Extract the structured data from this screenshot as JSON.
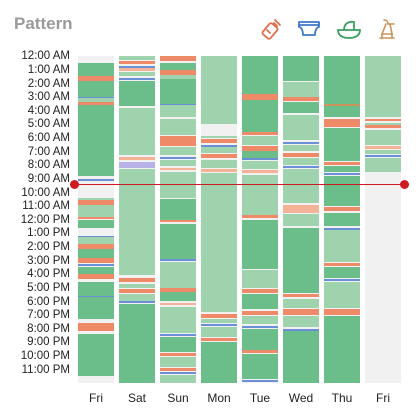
{
  "header": {
    "title": "Pattern",
    "icons": [
      "bottle-icon",
      "diaper-icon",
      "bassinet-icon",
      "pump-icon"
    ],
    "icon_color": "#e0704c"
  },
  "chart": {
    "hours": [
      "12:00 AM",
      "1:00 AM",
      "2:00 AM",
      "3:00 AM",
      "4:00 AM",
      "5:00 AM",
      "6:00 AM",
      "7:00 AM",
      "8:00 AM",
      "9:00 AM",
      "10:00 AM",
      "11:00 AM",
      "12:00 PM",
      "1:00 PM",
      "2:00 PM",
      "3:00 PM",
      "4:00 PM",
      "5:00 PM",
      "6:00 PM",
      "7:00 PM",
      "8:00 PM",
      "9:00 PM",
      "10:00 PM",
      "11:00 PM"
    ],
    "days": [
      "Fri",
      "Sat",
      "Sun",
      "Mon",
      "Tue",
      "Wed",
      "Thu",
      "Fri"
    ],
    "colors": {
      "sleep_dark": "#6bbd8a",
      "sleep_light": "#9fd3ae",
      "feed": "#ef8a68",
      "feed_light": "#f4b396",
      "diaper": "#6a8fd6",
      "diaper_light": "#b7b3e8",
      "pump": "#c9935a",
      "now_line": "#d01a22"
    },
    "now_time": "9:00 AM"
  },
  "chart_data": {
    "type": "heatmap",
    "x": [
      "Fri",
      "Sat",
      "Sun",
      "Mon",
      "Tue",
      "Wed",
      "Thu",
      "Fri"
    ],
    "y_hours": [
      "12:00 AM",
      "1:00 AM",
      "2:00 AM",
      "3:00 AM",
      "4:00 AM",
      "5:00 AM",
      "6:00 AM",
      "7:00 AM",
      "8:00 AM",
      "9:00 AM",
      "10:00 AM",
      "11:00 AM",
      "12:00 PM",
      "1:00 PM",
      "2:00 PM",
      "3:00 PM",
      "4:00 PM",
      "5:00 PM",
      "6:00 PM",
      "7:00 PM",
      "8:00 PM",
      "9:00 PM",
      "10:00 PM",
      "11:00 PM"
    ],
    "columns": [
      {
        "day": "Fri",
        "segments": [
          [
            "sleep_dark",
            0.5,
            1.5
          ],
          [
            "feed",
            1.5,
            1.8
          ],
          [
            "sleep_dark",
            1.8,
            3.0
          ],
          [
            "diaper",
            3.0,
            3.1
          ],
          [
            "sleep_light",
            3.1,
            3.4
          ],
          [
            "feed",
            3.4,
            3.6
          ],
          [
            "sleep_dark",
            3.6,
            8.8
          ],
          [
            "diaper",
            9.0,
            9.2
          ],
          [
            "sleep_light",
            10.4,
            10.6
          ],
          [
            "feed",
            10.6,
            10.9
          ],
          [
            "sleep_light",
            10.9,
            11.8
          ],
          [
            "feed",
            11.8,
            12.0
          ],
          [
            "sleep_dark",
            12.0,
            12.6
          ],
          [
            "diaper",
            13.2,
            13.3
          ],
          [
            "sleep_light",
            13.3,
            13.8
          ],
          [
            "feed",
            13.8,
            14.2
          ],
          [
            "sleep_dark",
            14.2,
            14.8
          ],
          [
            "feed",
            14.8,
            15.2
          ],
          [
            "diaper",
            15.3,
            15.4
          ],
          [
            "sleep_dark",
            15.5,
            16.0
          ],
          [
            "feed",
            16.0,
            16.4
          ],
          [
            "sleep_dark",
            16.6,
            17.6
          ],
          [
            "diaper",
            17.6,
            17.7
          ],
          [
            "sleep_dark",
            17.7,
            19.3
          ],
          [
            "feed",
            19.6,
            20.2
          ],
          [
            "sleep_dark",
            20.4,
            23.5
          ]
        ]
      },
      {
        "day": "Sat",
        "segments": [
          [
            "sleep_light",
            0.0,
            0.3
          ],
          [
            "feed",
            0.4,
            0.6
          ],
          [
            "diaper",
            0.7,
            0.8
          ],
          [
            "feed_light",
            0.9,
            1.1
          ],
          [
            "sleep_light",
            1.2,
            1.5
          ],
          [
            "diaper",
            1.6,
            1.7
          ],
          [
            "sleep_dark",
            1.8,
            3.7
          ],
          [
            "sleep_light",
            3.8,
            7.3
          ],
          [
            "feed_light",
            7.4,
            7.6
          ],
          [
            "diaper_light",
            7.8,
            8.2
          ],
          [
            "sleep_light",
            8.3,
            16.1
          ],
          [
            "feed",
            16.3,
            16.6
          ],
          [
            "sleep_light",
            16.7,
            17.0
          ],
          [
            "feed",
            17.1,
            17.4
          ],
          [
            "sleep_light",
            17.5,
            18.0
          ],
          [
            "diaper",
            18.0,
            18.1
          ],
          [
            "sleep_dark",
            18.2,
            24.0
          ]
        ]
      },
      {
        "day": "Sun",
        "segments": [
          [
            "feed",
            0.0,
            0.4
          ],
          [
            "sleep_dark",
            0.5,
            1.0
          ],
          [
            "feed",
            1.0,
            1.4
          ],
          [
            "sleep_light",
            1.4,
            1.7
          ],
          [
            "sleep_dark",
            1.7,
            3.5
          ],
          [
            "diaper",
            3.5,
            3.6
          ],
          [
            "sleep_light",
            3.6,
            4.5
          ],
          [
            "sleep_light",
            4.6,
            5.8
          ],
          [
            "feed",
            5.9,
            6.6
          ],
          [
            "sleep_light",
            6.7,
            7.3
          ],
          [
            "diaper",
            7.4,
            7.5
          ],
          [
            "sleep_light",
            7.6,
            8.1
          ],
          [
            "feed_light",
            8.2,
            8.4
          ],
          [
            "sleep_light",
            8.5,
            10.4
          ],
          [
            "sleep_dark",
            10.5,
            12.0
          ],
          [
            "feed",
            12.0,
            12.2
          ],
          [
            "sleep_dark",
            12.3,
            14.9
          ],
          [
            "diaper",
            14.9,
            15.0
          ],
          [
            "sleep_light",
            15.1,
            17.0
          ],
          [
            "feed",
            17.0,
            17.3
          ],
          [
            "sleep_dark",
            17.3,
            18.0
          ],
          [
            "feed_light",
            18.1,
            18.3
          ],
          [
            "sleep_light",
            18.4,
            20.3
          ],
          [
            "diaper",
            20.4,
            20.5
          ],
          [
            "sleep_dark",
            20.6,
            21.7
          ],
          [
            "feed",
            21.8,
            22.0
          ],
          [
            "sleep_light",
            22.1,
            22.8
          ],
          [
            "feed",
            22.9,
            23.1
          ],
          [
            "diaper",
            23.2,
            23.3
          ],
          [
            "sleep_light",
            23.4,
            24.0
          ]
        ]
      },
      {
        "day": "Mon",
        "segments": [
          [
            "sleep_light",
            0.0,
            5.0
          ],
          [
            "sleep_light",
            5.9,
            6.0
          ],
          [
            "feed",
            6.1,
            6.4
          ],
          [
            "diaper",
            6.5,
            6.6
          ],
          [
            "sleep_light",
            6.7,
            7.1
          ],
          [
            "feed",
            7.2,
            7.5
          ],
          [
            "sleep_light",
            7.6,
            8.2
          ],
          [
            "feed_light",
            8.3,
            8.5
          ],
          [
            "sleep_light",
            8.6,
            18.8
          ],
          [
            "feed",
            18.9,
            19.2
          ],
          [
            "sleep_light",
            19.3,
            19.6
          ],
          [
            "diaper",
            19.7,
            19.8
          ],
          [
            "sleep_light",
            19.9,
            20.6
          ],
          [
            "feed",
            20.7,
            20.9
          ],
          [
            "sleep_dark",
            21.0,
            24.0
          ]
        ]
      },
      {
        "day": "Tue",
        "segments": [
          [
            "sleep_dark",
            0.0,
            2.8
          ],
          [
            "feed",
            2.8,
            3.2
          ],
          [
            "sleep_dark",
            3.2,
            5.6
          ],
          [
            "feed",
            5.6,
            5.8
          ],
          [
            "sleep_light",
            5.9,
            6.5
          ],
          [
            "feed",
            6.6,
            7.0
          ],
          [
            "sleep_dark",
            7.0,
            7.5
          ],
          [
            "diaper",
            7.5,
            7.6
          ],
          [
            "sleep_light",
            7.7,
            8.3
          ],
          [
            "feed_light",
            8.4,
            8.6
          ],
          [
            "sleep_light",
            8.7,
            11.7
          ],
          [
            "feed",
            11.7,
            11.9
          ],
          [
            "sleep_dark",
            12.0,
            15.6
          ],
          [
            "sleep_light",
            15.7,
            17.0
          ],
          [
            "feed",
            17.1,
            17.4
          ],
          [
            "sleep_dark",
            17.5,
            18.6
          ],
          [
            "feed",
            18.7,
            19.0
          ],
          [
            "sleep_light",
            19.1,
            19.7
          ],
          [
            "diaper",
            19.8,
            19.9
          ],
          [
            "sleep_dark",
            20.0,
            21.6
          ],
          [
            "feed",
            21.6,
            21.8
          ],
          [
            "sleep_dark",
            21.9,
            23.7
          ],
          [
            "diaper",
            23.8,
            23.9
          ]
        ]
      },
      {
        "day": "Wed",
        "segments": [
          [
            "sleep_dark",
            0.0,
            1.8
          ],
          [
            "sleep_light",
            1.9,
            3.0
          ],
          [
            "feed",
            3.0,
            3.3
          ],
          [
            "sleep_dark",
            3.4,
            4.2
          ],
          [
            "sleep_light",
            4.3,
            6.2
          ],
          [
            "diaper",
            6.3,
            6.4
          ],
          [
            "sleep_light",
            6.5,
            7.0
          ],
          [
            "feed",
            7.1,
            7.4
          ],
          [
            "sleep_light",
            7.5,
            8.0
          ],
          [
            "diaper",
            8.1,
            8.2
          ],
          [
            "sleep_light",
            8.3,
            10.8
          ],
          [
            "feed_light",
            10.9,
            11.5
          ],
          [
            "sleep_light",
            11.6,
            12.5
          ],
          [
            "sleep_dark",
            12.6,
            17.4
          ],
          [
            "feed",
            17.5,
            17.7
          ],
          [
            "sleep_light",
            17.8,
            18.5
          ],
          [
            "feed",
            18.6,
            19.0
          ],
          [
            "sleep_light",
            19.1,
            19.9
          ],
          [
            "diaper",
            20.0,
            20.1
          ],
          [
            "sleep_dark",
            20.2,
            24.0
          ]
        ]
      },
      {
        "day": "Thu",
        "segments": [
          [
            "sleep_dark",
            0.0,
            3.5
          ],
          [
            "pump",
            3.5,
            3.7
          ],
          [
            "sleep_dark",
            3.7,
            4.5
          ],
          [
            "feed",
            4.6,
            5.2
          ],
          [
            "sleep_dark",
            5.3,
            7.7
          ],
          [
            "feed",
            7.8,
            8.0
          ],
          [
            "sleep_dark",
            8.1,
            8.5
          ],
          [
            "diaper",
            8.6,
            8.7
          ],
          [
            "sleep_dark",
            8.8,
            11.0
          ],
          [
            "feed",
            11.1,
            11.4
          ],
          [
            "sleep_dark",
            11.5,
            12.5
          ],
          [
            "diaper",
            12.6,
            12.7
          ],
          [
            "sleep_light",
            12.8,
            15.1
          ],
          [
            "feed",
            15.2,
            15.4
          ],
          [
            "sleep_dark",
            15.5,
            16.3
          ],
          [
            "diaper",
            16.4,
            16.5
          ],
          [
            "sleep_light",
            16.6,
            18.5
          ],
          [
            "feed",
            18.6,
            19.0
          ],
          [
            "sleep_dark",
            19.1,
            24.0
          ]
        ]
      },
      {
        "day": "Fri",
        "segments": [
          [
            "sleep_light",
            0.0,
            4.5
          ],
          [
            "feed",
            4.6,
            4.8
          ],
          [
            "sleep_light",
            4.9,
            5.0
          ],
          [
            "feed",
            5.1,
            5.3
          ],
          [
            "sleep_light",
            5.4,
            6.5
          ],
          [
            "feed_light",
            6.6,
            6.8
          ],
          [
            "sleep_light",
            6.9,
            7.2
          ],
          [
            "diaper",
            7.3,
            7.4
          ],
          [
            "sleep_light",
            7.5,
            8.5
          ]
        ]
      }
    ]
  }
}
